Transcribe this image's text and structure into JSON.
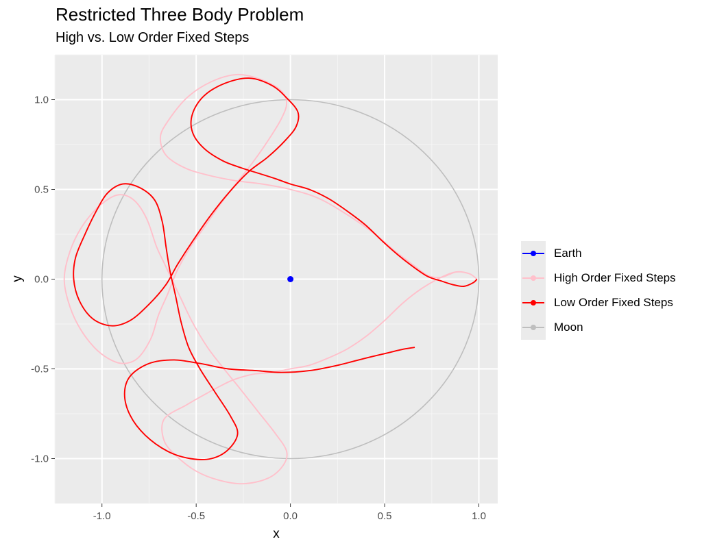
{
  "chart_data": {
    "type": "line",
    "title": "Restricted Three Body Problem",
    "subtitle": "High vs. Low Order Fixed Steps",
    "xlabel": "x",
    "ylabel": "y",
    "xlim": [
      -1.25,
      1.1
    ],
    "ylim": [
      -1.25,
      1.25
    ],
    "x_ticks": [
      -1.0,
      -0.5,
      0.0,
      0.5,
      1.0
    ],
    "x_tick_labels": [
      "-1.0",
      "-0.5",
      "0.0",
      "0.5",
      "1.0"
    ],
    "y_ticks": [
      -1.0,
      -0.5,
      0.0,
      0.5,
      1.0
    ],
    "y_tick_labels": [
      "-1.0",
      "-0.5",
      "0.0",
      "0.5",
      "1.0"
    ],
    "grid": true,
    "legend_position": "right",
    "series": [
      {
        "name": "Moon",
        "color": "#bebebe",
        "shape": "circle",
        "center": [
          0,
          0
        ],
        "radius": 1.0
      },
      {
        "name": "High Order Fixed Steps",
        "color": "#ffc0cb",
        "points": [
          [
            0.99,
            0.0
          ],
          [
            0.95,
            0.03
          ],
          [
            0.88,
            0.04
          ],
          [
            0.8,
            0.01
          ],
          [
            0.7,
            -0.05
          ],
          [
            0.6,
            -0.13
          ],
          [
            0.5,
            -0.23
          ],
          [
            0.4,
            -0.32
          ],
          [
            0.3,
            -0.39
          ],
          [
            0.2,
            -0.44
          ],
          [
            0.1,
            -0.48
          ],
          [
            0.0,
            -0.5
          ],
          [
            -0.1,
            -0.52
          ],
          [
            -0.2,
            -0.53
          ],
          [
            -0.3,
            -0.56
          ],
          [
            -0.38,
            -0.6
          ],
          [
            -0.45,
            -0.64
          ],
          [
            -0.55,
            -0.7
          ],
          [
            -0.67,
            -0.78
          ],
          [
            -0.67,
            -0.9
          ],
          [
            -0.6,
            -0.99
          ],
          [
            -0.5,
            -1.07
          ],
          [
            -0.38,
            -1.12
          ],
          [
            -0.25,
            -1.14
          ],
          [
            -0.12,
            -1.11
          ],
          [
            -0.04,
            -1.04
          ],
          [
            -0.02,
            -0.96
          ],
          [
            -0.08,
            -0.86
          ],
          [
            -0.17,
            -0.74
          ],
          [
            -0.26,
            -0.62
          ],
          [
            -0.36,
            -0.49
          ],
          [
            -0.44,
            -0.38
          ],
          [
            -0.52,
            -0.24
          ],
          [
            -0.58,
            -0.11
          ],
          [
            -0.63,
            0.0
          ],
          [
            -0.67,
            0.09
          ],
          [
            -0.71,
            0.18
          ],
          [
            -0.76,
            0.33
          ],
          [
            -0.82,
            0.43
          ],
          [
            -0.89,
            0.47
          ],
          [
            -0.96,
            0.45
          ],
          [
            -1.05,
            0.37
          ],
          [
            -1.13,
            0.25
          ],
          [
            -1.18,
            0.12
          ],
          [
            -1.2,
            0.0
          ],
          [
            -1.18,
            -0.12
          ],
          [
            -1.13,
            -0.25
          ],
          [
            -1.05,
            -0.37
          ],
          [
            -0.97,
            -0.44
          ],
          [
            -0.89,
            -0.47
          ],
          [
            -0.81,
            -0.44
          ],
          [
            -0.74,
            -0.33
          ],
          [
            -0.7,
            -0.2
          ],
          [
            -0.65,
            -0.08
          ],
          [
            -0.6,
            0.05
          ],
          [
            -0.53,
            0.18
          ],
          [
            -0.45,
            0.3
          ],
          [
            -0.37,
            0.42
          ],
          [
            -0.29,
            0.53
          ],
          [
            -0.2,
            0.65
          ],
          [
            -0.12,
            0.77
          ],
          [
            -0.05,
            0.89
          ],
          [
            -0.02,
            0.98
          ],
          [
            -0.05,
            1.05
          ],
          [
            -0.15,
            1.11
          ],
          [
            -0.28,
            1.14
          ],
          [
            -0.42,
            1.1
          ],
          [
            -0.55,
            1.01
          ],
          [
            -0.65,
            0.88
          ],
          [
            -0.69,
            0.79
          ],
          [
            -0.66,
            0.69
          ],
          [
            -0.56,
            0.62
          ],
          [
            -0.44,
            0.58
          ],
          [
            -0.3,
            0.55
          ],
          [
            -0.15,
            0.53
          ],
          [
            0.0,
            0.5
          ],
          [
            0.15,
            0.45
          ],
          [
            0.3,
            0.36
          ],
          [
            0.45,
            0.25
          ],
          [
            0.55,
            0.16
          ],
          [
            0.65,
            0.08
          ],
          [
            0.73,
            0.02
          ],
          [
            0.8,
            0.01
          ],
          [
            0.88,
            0.04
          ],
          [
            0.95,
            0.03
          ],
          [
            0.99,
            0.0
          ]
        ]
      },
      {
        "name": "Low Order Fixed Steps",
        "color": "#ff0000",
        "points": [
          [
            0.99,
            0.0
          ],
          [
            0.97,
            -0.02
          ],
          [
            0.92,
            -0.04
          ],
          [
            0.86,
            -0.03
          ],
          [
            0.8,
            -0.01
          ],
          [
            0.72,
            0.02
          ],
          [
            0.6,
            0.11
          ],
          [
            0.5,
            0.2
          ],
          [
            0.4,
            0.3
          ],
          [
            0.3,
            0.38
          ],
          [
            0.2,
            0.45
          ],
          [
            0.1,
            0.5
          ],
          [
            0.0,
            0.53
          ],
          [
            -0.08,
            0.56
          ],
          [
            -0.17,
            0.59
          ],
          [
            -0.26,
            0.62
          ],
          [
            -0.36,
            0.66
          ],
          [
            -0.46,
            0.73
          ],
          [
            -0.52,
            0.82
          ],
          [
            -0.52,
            0.92
          ],
          [
            -0.46,
            1.02
          ],
          [
            -0.35,
            1.09
          ],
          [
            -0.22,
            1.12
          ],
          [
            -0.1,
            1.08
          ],
          [
            -0.02,
            1.01
          ],
          [
            0.04,
            0.93
          ],
          [
            0.03,
            0.85
          ],
          [
            -0.03,
            0.77
          ],
          [
            -0.12,
            0.68
          ],
          [
            -0.22,
            0.6
          ],
          [
            -0.32,
            0.49
          ],
          [
            -0.42,
            0.36
          ],
          [
            -0.52,
            0.21
          ],
          [
            -0.6,
            0.08
          ],
          [
            -0.66,
            -0.03
          ],
          [
            -0.75,
            -0.14
          ],
          [
            -0.85,
            -0.23
          ],
          [
            -0.95,
            -0.26
          ],
          [
            -1.05,
            -0.22
          ],
          [
            -1.12,
            -0.12
          ],
          [
            -1.15,
            0.0
          ],
          [
            -1.14,
            0.12
          ],
          [
            -1.09,
            0.25
          ],
          [
            -1.03,
            0.38
          ],
          [
            -0.97,
            0.48
          ],
          [
            -0.89,
            0.53
          ],
          [
            -0.8,
            0.51
          ],
          [
            -0.72,
            0.44
          ],
          [
            -0.68,
            0.32
          ],
          [
            -0.66,
            0.18
          ],
          [
            -0.64,
            0.05
          ],
          [
            -0.61,
            -0.09
          ],
          [
            -0.58,
            -0.24
          ],
          [
            -0.54,
            -0.38
          ],
          [
            -0.48,
            -0.5
          ],
          [
            -0.4,
            -0.63
          ],
          [
            -0.32,
            -0.76
          ],
          [
            -0.28,
            -0.86
          ],
          [
            -0.33,
            -0.95
          ],
          [
            -0.42,
            -1.0
          ],
          [
            -0.53,
            -1.0
          ],
          [
            -0.65,
            -0.96
          ],
          [
            -0.77,
            -0.87
          ],
          [
            -0.85,
            -0.76
          ],
          [
            -0.88,
            -0.64
          ],
          [
            -0.85,
            -0.54
          ],
          [
            -0.75,
            -0.47
          ],
          [
            -0.62,
            -0.45
          ],
          [
            -0.48,
            -0.47
          ],
          [
            -0.33,
            -0.5
          ],
          [
            -0.18,
            -0.51
          ],
          [
            -0.05,
            -0.52
          ],
          [
            0.1,
            -0.51
          ],
          [
            0.25,
            -0.48
          ],
          [
            0.4,
            -0.44
          ],
          [
            0.52,
            -0.41
          ],
          [
            0.6,
            -0.39
          ],
          [
            0.66,
            -0.38
          ]
        ]
      },
      {
        "name": "Earth",
        "color": "#0000ff",
        "points": [
          [
            0.0,
            0.0
          ]
        ]
      }
    ],
    "legend": [
      {
        "name": "Earth",
        "color": "#0000ff"
      },
      {
        "name": "High Order Fixed Steps",
        "color": "#ffc0cb"
      },
      {
        "name": "Low Order Fixed Steps",
        "color": "#ff0000"
      },
      {
        "name": "Moon",
        "color": "#bebebe"
      }
    ]
  }
}
